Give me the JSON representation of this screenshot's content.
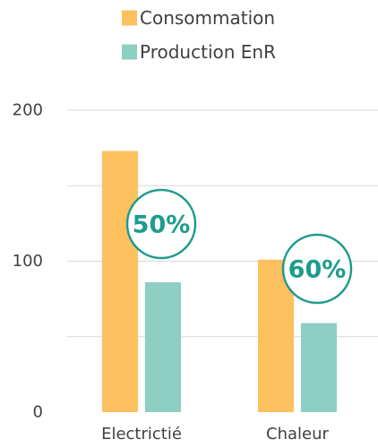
{
  "chart_data": {
    "type": "bar",
    "categories": [
      "Electrictié",
      "Chaleur"
    ],
    "series": [
      {
        "name": "Consommation",
        "values": [
          173,
          101
        ],
        "color": "#FDC05F"
      },
      {
        "name": "Production EnR",
        "values": [
          86,
          59
        ],
        "color": "#8DCFC2"
      }
    ],
    "annotations": [
      {
        "category": "Electrictié",
        "text": "50%"
      },
      {
        "category": "Chaleur",
        "text": "60%"
      }
    ],
    "annotation_color": "#1E9C8C",
    "ylim": [
      0,
      200
    ],
    "ytick_values": [
      0,
      100,
      200
    ],
    "yticks": [
      "0",
      "100",
      "200"
    ],
    "grid": true,
    "grid_color": "#D9D9D9",
    "legend_position": "top-center",
    "title": "",
    "xlabel": "",
    "ylabel": ""
  }
}
